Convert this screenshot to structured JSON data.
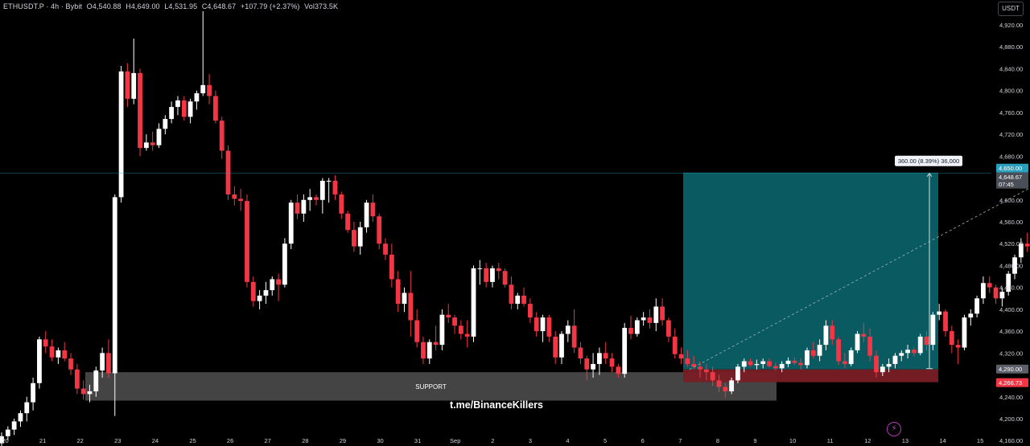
{
  "header": {
    "symbol": "ETHUSDT.P · 4h · Bybit",
    "open": "O4,540.88",
    "high": "H4,649.00",
    "low": "L4,531.95",
    "close": "C4,648.67",
    "change": "+107.79 (+2.37%)",
    "volume": "Vol373.5K"
  },
  "currency_button": "USDT",
  "colors": {
    "up": "#ffffff",
    "down": "#f23645",
    "support_zone": "#4a4a4a",
    "target_zone": "#0a5f66",
    "stop_zone": "#7a1d25",
    "last_price_label": "#2b9fbe"
  },
  "chart_data": {
    "type": "candlestick",
    "timeframe": "4h",
    "x_tick_labels": [
      "20",
      "21",
      "22",
      "23",
      "24",
      "25",
      "26",
      "27",
      "28",
      "29",
      "30",
      "31",
      "Sep",
      "2",
      "3",
      "4",
      "5",
      "6",
      "7",
      "8",
      "9",
      "10",
      "11",
      "12",
      "13",
      "14",
      "15"
    ],
    "y_tick_labels": [
      "4,920.00",
      "4,880.00",
      "4,840.00",
      "4,800.00",
      "4,760.00",
      "4,720.00",
      "4,680.00",
      "4,600.00",
      "4,560.00",
      "4,520.00",
      "4,480.00",
      "4,440.00",
      "4,400.00",
      "4,360.00",
      "4,320.00",
      "4,240.00",
      "4,200.00",
      "4,160.00"
    ],
    "y_ticks": [
      4920,
      4880,
      4840,
      4800,
      4760,
      4720,
      4680,
      4600,
      4560,
      4520,
      4480,
      4440,
      4400,
      4360,
      4320,
      4240,
      4200,
      4160
    ],
    "ylim": [
      4150,
      4945
    ],
    "series": [
      {
        "values": [
          [
            4155,
            4175,
            4148,
            4168
          ],
          [
            4168,
            4186,
            4160,
            4180
          ],
          [
            4180,
            4200,
            4170,
            4195
          ],
          [
            4195,
            4215,
            4185,
            4210
          ],
          [
            4210,
            4240,
            4195,
            4230
          ],
          [
            4230,
            4275,
            4215,
            4265
          ],
          [
            4265,
            4350,
            4255,
            4345
          ],
          [
            4345,
            4360,
            4320,
            4332
          ],
          [
            4332,
            4345,
            4305,
            4312
          ],
          [
            4312,
            4330,
            4300,
            4325
          ],
          [
            4325,
            4340,
            4305,
            4310
          ],
          [
            4310,
            4320,
            4280,
            4290
          ],
          [
            4290,
            4300,
            4245,
            4255
          ],
          [
            4255,
            4270,
            4235,
            4245
          ],
          [
            4245,
            4262,
            4230,
            4250
          ],
          [
            4250,
            4295,
            4240,
            4288
          ],
          [
            4288,
            4330,
            4275,
            4320
          ],
          [
            4320,
            4345,
            4275,
            4283
          ],
          [
            4283,
            4610,
            4205,
            4605
          ],
          [
            4605,
            4845,
            4595,
            4835
          ],
          [
            4835,
            4850,
            4770,
            4785
          ],
          [
            4785,
            4895,
            4775,
            4832
          ],
          [
            4832,
            4840,
            4680,
            4695
          ],
          [
            4695,
            4720,
            4690,
            4705
          ],
          [
            4705,
            4725,
            4690,
            4700
          ],
          [
            4700,
            4740,
            4695,
            4730
          ],
          [
            4730,
            4755,
            4720,
            4748
          ],
          [
            4748,
            4780,
            4740,
            4770
          ],
          [
            4770,
            4790,
            4755,
            4782
          ],
          [
            4782,
            4790,
            4745,
            4752
          ],
          [
            4752,
            4785,
            4740,
            4780
          ],
          [
            4780,
            4800,
            4765,
            4795
          ],
          [
            4795,
            4945,
            4790,
            4810
          ],
          [
            4810,
            4830,
            4775,
            4790
          ],
          [
            4790,
            4800,
            4740,
            4745
          ],
          [
            4745,
            4752,
            4675,
            4690
          ],
          [
            4690,
            4700,
            4600,
            4610
          ],
          [
            4610,
            4625,
            4590,
            4602
          ],
          [
            4602,
            4620,
            4580,
            4598
          ],
          [
            4598,
            4610,
            4440,
            4450
          ],
          [
            4450,
            4460,
            4405,
            4415
          ],
          [
            4415,
            4435,
            4400,
            4425
          ],
          [
            4425,
            4450,
            4410,
            4435
          ],
          [
            4435,
            4460,
            4425,
            4455
          ],
          [
            4455,
            4465,
            4415,
            4445
          ],
          [
            4445,
            4530,
            4440,
            4520
          ],
          [
            4520,
            4600,
            4510,
            4595
          ],
          [
            4595,
            4610,
            4565,
            4575
          ],
          [
            4575,
            4610,
            4560,
            4600
          ],
          [
            4600,
            4620,
            4580,
            4605
          ],
          [
            4605,
            4610,
            4590,
            4600
          ],
          [
            4600,
            4640,
            4575,
            4635
          ],
          [
            4635,
            4640,
            4595,
            4635
          ],
          [
            4635,
            4645,
            4600,
            4610
          ],
          [
            4610,
            4615,
            4565,
            4575
          ],
          [
            4575,
            4580,
            4540,
            4545
          ],
          [
            4545,
            4560,
            4505,
            4515
          ],
          [
            4515,
            4560,
            4500,
            4550
          ],
          [
            4550,
            4600,
            4540,
            4595
          ],
          [
            4595,
            4610,
            4560,
            4570
          ],
          [
            4570,
            4575,
            4510,
            4520
          ],
          [
            4520,
            4530,
            4490,
            4500
          ],
          [
            4500,
            4520,
            4440,
            4455
          ],
          [
            4455,
            4470,
            4395,
            4410
          ],
          [
            4410,
            4440,
            4395,
            4430
          ],
          [
            4430,
            4470,
            4350,
            4380
          ],
          [
            4380,
            4400,
            4330,
            4340
          ],
          [
            4340,
            4350,
            4300,
            4310
          ],
          [
            4310,
            4345,
            4300,
            4340
          ],
          [
            4340,
            4370,
            4325,
            4335
          ],
          [
            4335,
            4400,
            4325,
            4390
          ],
          [
            4390,
            4410,
            4375,
            4385
          ],
          [
            4385,
            4390,
            4355,
            4370
          ],
          [
            4370,
            4380,
            4345,
            4355
          ],
          [
            4355,
            4380,
            4330,
            4350
          ],
          [
            4350,
            4480,
            4340,
            4475
          ],
          [
            4475,
            4490,
            4445,
            4475
          ],
          [
            4475,
            4485,
            4440,
            4450
          ],
          [
            4450,
            4480,
            4440,
            4475
          ],
          [
            4475,
            4485,
            4455,
            4470
          ],
          [
            4470,
            4475,
            4440,
            4445
          ],
          [
            4445,
            4460,
            4400,
            4410
          ],
          [
            4410,
            4430,
            4400,
            4425
          ],
          [
            4425,
            4440,
            4405,
            4410
          ],
          [
            4410,
            4420,
            4375,
            4385
          ],
          [
            4385,
            4395,
            4350,
            4360
          ],
          [
            4360,
            4390,
            4340,
            4385
          ],
          [
            4385,
            4390,
            4340,
            4350
          ],
          [
            4350,
            4360,
            4300,
            4312
          ],
          [
            4312,
            4360,
            4300,
            4355
          ],
          [
            4355,
            4380,
            4340,
            4370
          ],
          [
            4370,
            4400,
            4320,
            4330
          ],
          [
            4330,
            4340,
            4300,
            4310
          ],
          [
            4310,
            4315,
            4270,
            4290
          ],
          [
            4290,
            4320,
            4275,
            4300
          ],
          [
            4300,
            4330,
            4280,
            4320
          ],
          [
            4320,
            4340,
            4300,
            4310
          ],
          [
            4310,
            4320,
            4285,
            4295
          ],
          [
            4295,
            4300,
            4275,
            4282
          ],
          [
            4282,
            4375,
            4275,
            4366
          ],
          [
            4366,
            4388,
            4345,
            4355
          ],
          [
            4355,
            4385,
            4350,
            4380
          ],
          [
            4380,
            4395,
            4370,
            4385
          ],
          [
            4385,
            4400,
            4365,
            4375
          ],
          [
            4375,
            4420,
            4360,
            4405
          ],
          [
            4405,
            4420,
            4370,
            4380
          ],
          [
            4380,
            4385,
            4340,
            4350
          ],
          [
            4350,
            4365,
            4310,
            4318
          ],
          [
            4318,
            4330,
            4300,
            4310
          ],
          [
            4310,
            4325,
            4295,
            4300
          ],
          [
            4300,
            4315,
            4290,
            4295
          ],
          [
            4295,
            4305,
            4275,
            4290
          ],
          [
            4290,
            4300,
            4270,
            4285
          ],
          [
            4285,
            4295,
            4260,
            4270
          ],
          [
            4270,
            4280,
            4248,
            4258
          ],
          [
            4258,
            4265,
            4238,
            4250
          ],
          [
            4250,
            4275,
            4245,
            4270
          ],
          [
            4270,
            4300,
            4265,
            4295
          ],
          [
            4295,
            4310,
            4285,
            4305
          ],
          [
            4305,
            4310,
            4295,
            4298
          ],
          [
            4298,
            4308,
            4290,
            4300
          ],
          [
            4300,
            4310,
            4292,
            4305
          ],
          [
            4305,
            4310,
            4294,
            4296
          ],
          [
            4296,
            4302,
            4288,
            4292
          ],
          [
            4292,
            4305,
            4285,
            4300
          ],
          [
            4300,
            4312,
            4294,
            4306
          ],
          [
            4306,
            4312,
            4298,
            4302
          ],
          [
            4302,
            4310,
            4290,
            4298
          ],
          [
            4298,
            4330,
            4292,
            4325
          ],
          [
            4325,
            4340,
            4310,
            4315
          ],
          [
            4315,
            4345,
            4305,
            4335
          ],
          [
            4335,
            4380,
            4325,
            4370
          ],
          [
            4370,
            4380,
            4335,
            4345
          ],
          [
            4345,
            4350,
            4298,
            4305
          ],
          [
            4305,
            4320,
            4292,
            4300
          ],
          [
            4300,
            4330,
            4296,
            4325
          ],
          [
            4325,
            4360,
            4320,
            4355
          ],
          [
            4355,
            4375,
            4340,
            4350
          ],
          [
            4350,
            4365,
            4305,
            4315
          ],
          [
            4315,
            4325,
            4275,
            4285
          ],
          [
            4285,
            4300,
            4278,
            4295
          ],
          [
            4295,
            4310,
            4285,
            4300
          ],
          [
            4300,
            4320,
            4292,
            4315
          ],
          [
            4315,
            4325,
            4305,
            4320
          ],
          [
            4320,
            4335,
            4310,
            4326
          ],
          [
            4326,
            4330,
            4314,
            4320
          ],
          [
            4320,
            4355,
            4316,
            4350
          ],
          [
            4350,
            4360,
            4325,
            4335
          ],
          [
            4335,
            4395,
            4325,
            4390
          ],
          [
            4390,
            4410,
            4380,
            4396
          ],
          [
            4396,
            4400,
            4350,
            4360
          ],
          [
            4360,
            4370,
            4320,
            4335
          ],
          [
            4335,
            4345,
            4300,
            4330
          ],
          [
            4330,
            4390,
            4325,
            4385
          ],
          [
            4385,
            4400,
            4370,
            4392
          ],
          [
            4392,
            4425,
            4385,
            4420
          ],
          [
            4420,
            4460,
            4410,
            4448
          ],
          [
            4448,
            4460,
            4430,
            4440
          ],
          [
            4440,
            4445,
            4410,
            4420
          ],
          [
            4420,
            4440,
            4405,
            4432
          ],
          [
            4432,
            4470,
            4425,
            4465
          ],
          [
            4465,
            4500,
            4455,
            4495
          ],
          [
            4495,
            4530,
            4485,
            4520
          ],
          [
            4520,
            4540,
            4505,
            4515
          ],
          [
            4515,
            4560,
            4505,
            4548
          ],
          [
            4548,
            4560,
            4520,
            4535
          ],
          [
            4535,
            4570,
            4525,
            4555
          ],
          [
            4555,
            4575,
            4540,
            4550
          ],
          [
            4540,
            4649,
            4532,
            4649
          ]
        ]
      }
    ],
    "support_zone": {
      "label": "SUPPORT",
      "top": 4285,
      "bottom": 4233
    },
    "long_position": {
      "entry": 4290.0,
      "target": 4650.0,
      "stop": 4266.73,
      "measure_label": "360.00 (8.39%) 36,000"
    },
    "price_labels": [
      {
        "value": "4,650.00",
        "price": 4650,
        "kind": "target"
      },
      {
        "value": "4,648.67",
        "price": 4648.67,
        "kind": "last",
        "countdown": "07:45"
      },
      {
        "value": "4,290.00",
        "price": 4290,
        "kind": "entry"
      },
      {
        "value": "4,266.73",
        "price": 4266.73,
        "kind": "stop"
      }
    ],
    "watermark": "t.me/BinanceKillers"
  }
}
